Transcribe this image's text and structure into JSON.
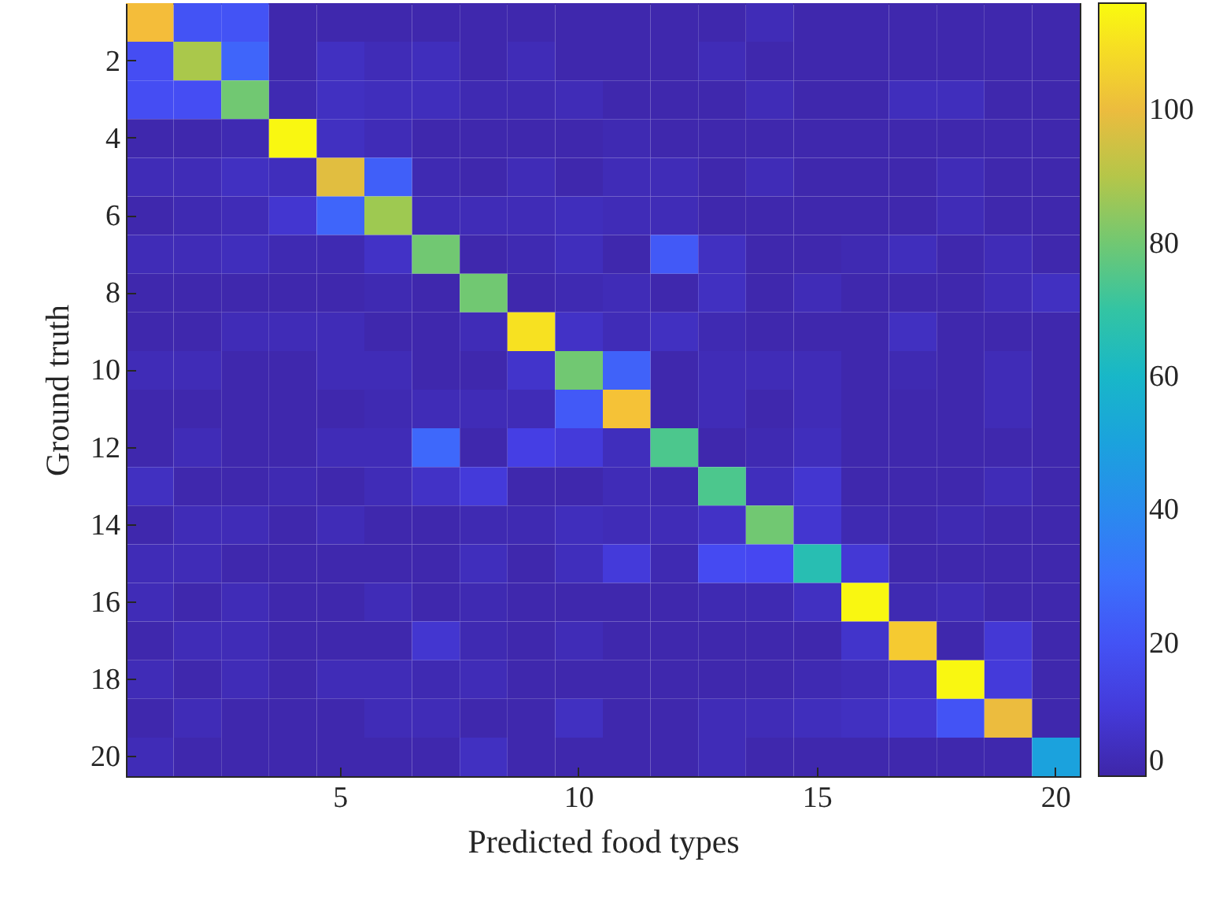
{
  "chart_data": {
    "type": "heatmap",
    "xlabel": "Predicted food types",
    "ylabel": "Ground truth",
    "categories": [
      null,
      null,
      null,
      null,
      "5",
      null,
      null,
      null,
      null,
      "10",
      null,
      null,
      null,
      null,
      "15",
      null,
      null,
      null,
      null,
      "20"
    ],
    "y_categories": [
      null,
      "2",
      null,
      "4",
      null,
      "6",
      null,
      "8",
      null,
      "10",
      null,
      "12",
      null,
      "14",
      null,
      "16",
      null,
      "18",
      null,
      "20"
    ],
    "cells": [
      [
        102,
        20,
        20,
        1,
        1,
        1,
        1,
        1,
        1,
        1,
        1,
        1,
        1,
        3,
        1,
        1,
        1,
        1,
        1,
        1
      ],
      [
        18,
        88,
        26,
        1,
        5,
        3,
        4,
        1,
        3,
        1,
        1,
        1,
        3,
        1,
        1,
        1,
        1,
        1,
        1,
        1
      ],
      [
        18,
        18,
        80,
        2,
        5,
        4,
        4,
        2,
        2,
        3,
        1,
        1,
        1,
        3,
        1,
        1,
        4,
        4,
        1,
        1
      ],
      [
        1,
        1,
        2,
        115,
        5,
        3,
        1,
        1,
        1,
        1,
        2,
        1,
        1,
        1,
        1,
        1,
        1,
        1,
        1,
        1
      ],
      [
        3,
        3,
        5,
        4,
        98,
        24,
        2,
        1,
        3,
        1,
        3,
        3,
        1,
        3,
        1,
        1,
        1,
        3,
        1,
        1
      ],
      [
        1,
        2,
        3,
        8,
        26,
        86,
        3,
        3,
        3,
        4,
        3,
        3,
        1,
        1,
        1,
        1,
        1,
        3,
        1,
        1
      ],
      [
        3,
        3,
        4,
        2,
        2,
        6,
        80,
        1,
        2,
        4,
        1,
        22,
        5,
        1,
        1,
        2,
        4,
        1,
        3,
        1
      ],
      [
        1,
        1,
        1,
        1,
        1,
        2,
        1,
        80,
        1,
        2,
        3,
        1,
        5,
        1,
        3,
        1,
        1,
        1,
        3,
        5
      ],
      [
        1,
        1,
        3,
        3,
        3,
        1,
        1,
        3,
        110,
        6,
        3,
        5,
        2,
        1,
        1,
        1,
        5,
        1,
        1,
        1
      ],
      [
        3,
        3,
        1,
        1,
        3,
        3,
        1,
        1,
        7,
        80,
        25,
        1,
        3,
        3,
        3,
        1,
        2,
        1,
        3,
        1
      ],
      [
        1,
        1,
        1,
        1,
        1,
        2,
        3,
        3,
        3,
        22,
        103,
        1,
        3,
        1,
        3,
        1,
        1,
        1,
        3,
        1
      ],
      [
        1,
        3,
        1,
        1,
        3,
        3,
        27,
        1,
        12,
        10,
        4,
        75,
        1,
        2,
        4,
        1,
        1,
        1,
        1,
        1
      ],
      [
        5,
        1,
        1,
        2,
        1,
        3,
        6,
        10,
        1,
        1,
        3,
        2,
        75,
        4,
        8,
        1,
        1,
        1,
        3,
        1
      ],
      [
        1,
        3,
        3,
        1,
        3,
        1,
        1,
        2,
        2,
        4,
        3,
        3,
        6,
        80,
        8,
        2,
        1,
        2,
        1,
        1
      ],
      [
        3,
        3,
        1,
        1,
        1,
        1,
        1,
        4,
        1,
        4,
        10,
        2,
        17,
        16,
        66,
        9,
        1,
        1,
        1,
        1
      ],
      [
        3,
        1,
        3,
        1,
        1,
        3,
        1,
        2,
        1,
        1,
        1,
        1,
        2,
        2,
        5,
        115,
        2,
        3,
        1,
        1
      ],
      [
        1,
        3,
        3,
        1,
        1,
        1,
        8,
        2,
        1,
        3,
        1,
        1,
        1,
        1,
        1,
        7,
        105,
        1,
        9,
        1
      ],
      [
        3,
        1,
        3,
        1,
        3,
        3,
        2,
        3,
        1,
        1,
        1,
        1,
        1,
        1,
        2,
        3,
        6,
        115,
        10,
        1
      ],
      [
        1,
        3,
        1,
        1,
        1,
        3,
        3,
        1,
        1,
        5,
        1,
        1,
        3,
        3,
        4,
        5,
        8,
        20,
        100,
        1
      ],
      [
        3,
        1,
        1,
        1,
        1,
        1,
        1,
        5,
        1,
        1,
        1,
        1,
        3,
        1,
        1,
        1,
        1,
        1,
        1,
        50
      ]
    ],
    "clim": [
      0,
      116
    ],
    "cticks": [
      0,
      20,
      40,
      60,
      80,
      100
    ]
  }
}
